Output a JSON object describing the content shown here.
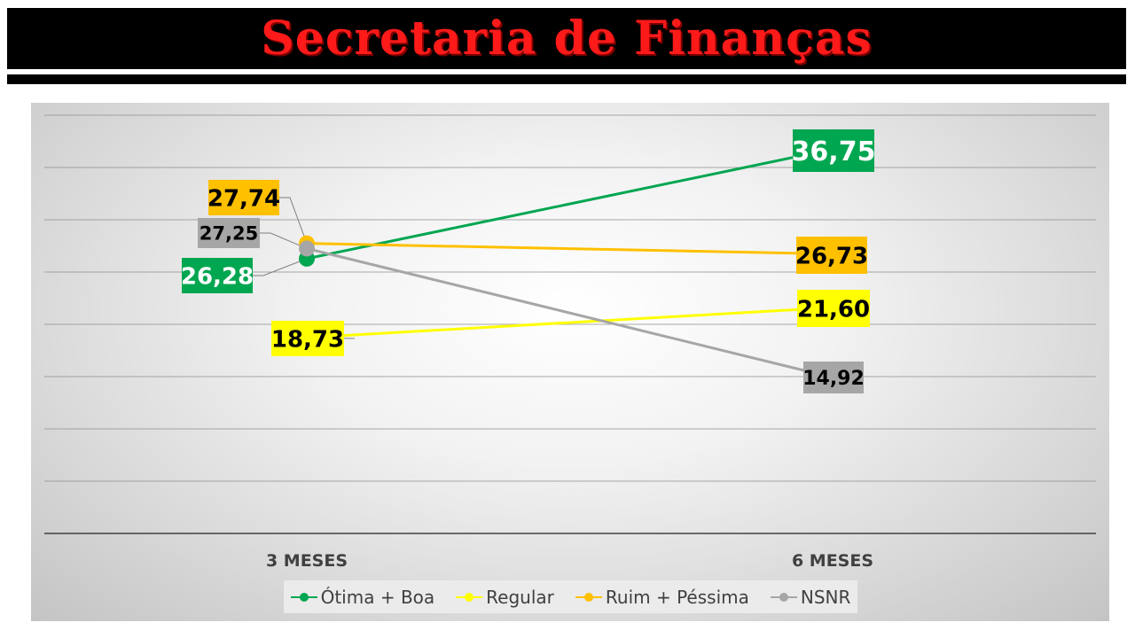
{
  "header": {
    "title": "Secretaria de Finanças"
  },
  "chart_data": {
    "type": "line",
    "categories": [
      "3 MESES",
      "6 MESES"
    ],
    "series": [
      {
        "name": "Ótima + Boa",
        "color": "#00a650",
        "values": [
          26.28,
          36.75
        ],
        "labels": [
          "26,28",
          "36,75"
        ],
        "label_text_color": "#ffffff"
      },
      {
        "name": "Regular",
        "color": "#ffff00",
        "values": [
          18.73,
          21.6
        ],
        "labels": [
          "18,73",
          "21,60"
        ],
        "label_text_color": "#000000"
      },
      {
        "name": "Ruim + Péssima",
        "color": "#ffc000",
        "values": [
          27.74,
          26.73
        ],
        "labels": [
          "27,74",
          "26,73"
        ],
        "label_text_color": "#000000"
      },
      {
        "name": "NSNR",
        "color": "#a6a6a6",
        "values": [
          27.25,
          14.92
        ],
        "labels": [
          "27,25",
          "14,92"
        ],
        "label_text_color": "#000000"
      }
    ],
    "ylim": [
      0,
      40
    ],
    "grid": true,
    "legend_position": "bottom"
  }
}
